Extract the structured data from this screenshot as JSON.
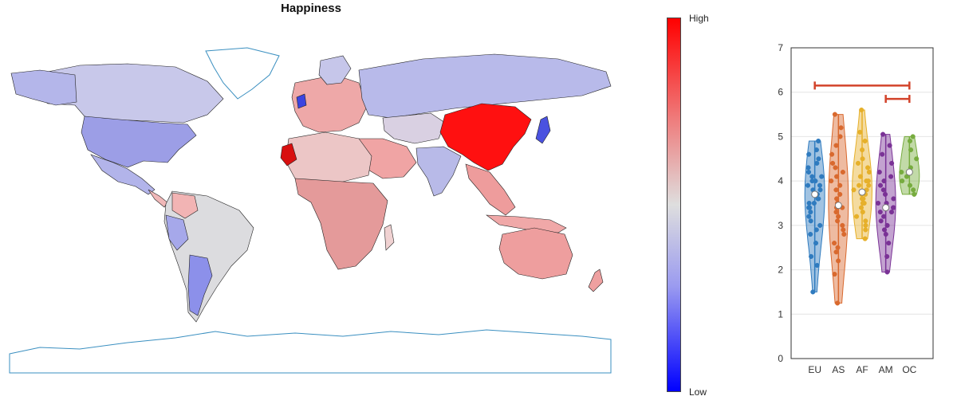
{
  "map": {
    "title": "Happiness",
    "colorbar": {
      "high_label": "High",
      "low_label": "Low",
      "colors": [
        "#0000ff",
        "#dedede",
        "#ff0000"
      ]
    },
    "highlighted_regions": [
      "China (highest)",
      "Western Sahara/Morocco (high)",
      "Japan (low)",
      "United Kingdom (low)"
    ]
  },
  "chart_data": {
    "type": "violin",
    "categories": [
      "EU",
      "AS",
      "AF",
      "AM",
      "OC"
    ],
    "ylim": [
      0,
      7
    ],
    "yticks": [
      0,
      1,
      2,
      3,
      4,
      5,
      6,
      7
    ],
    "grid": true,
    "series": [
      {
        "category": "EU",
        "color": "#2f7bbf",
        "min": 1.5,
        "max": 4.9,
        "median": 3.7,
        "points": [
          1.5,
          2.1,
          2.3,
          2.6,
          2.8,
          2.9,
          3.0,
          3.1,
          3.2,
          3.3,
          3.4,
          3.4,
          3.5,
          3.5,
          3.6,
          3.6,
          3.7,
          3.7,
          3.8,
          3.8,
          3.9,
          3.9,
          4.0,
          4.0,
          4.1,
          4.1,
          4.2,
          4.3,
          4.4,
          4.5,
          4.6,
          4.7,
          4.9
        ]
      },
      {
        "category": "AS",
        "color": "#d9692e",
        "min": 1.25,
        "max": 5.5,
        "median": 3.45,
        "points": [
          1.25,
          1.9,
          2.2,
          2.4,
          2.5,
          2.6,
          2.8,
          2.9,
          3.0,
          3.1,
          3.2,
          3.3,
          3.4,
          3.4,
          3.5,
          3.6,
          3.7,
          3.8,
          3.9,
          4.0,
          4.1,
          4.2,
          4.3,
          4.4,
          4.6,
          4.8,
          5.0,
          5.2,
          5.5
        ]
      },
      {
        "category": "AF",
        "color": "#e6b02a",
        "min": 2.7,
        "max": 5.6,
        "median": 3.75,
        "points": [
          2.7,
          2.9,
          3.0,
          3.1,
          3.2,
          3.3,
          3.4,
          3.5,
          3.5,
          3.6,
          3.6,
          3.7,
          3.7,
          3.8,
          3.8,
          3.9,
          3.9,
          4.0,
          4.0,
          4.1,
          4.2,
          4.3,
          4.4,
          4.5,
          4.7,
          4.9,
          5.1,
          5.6
        ]
      },
      {
        "category": "AM",
        "color": "#7a3296",
        "min": 1.95,
        "max": 5.05,
        "median": 3.4,
        "points": [
          1.95,
          2.3,
          2.6,
          2.8,
          2.9,
          3.0,
          3.1,
          3.2,
          3.3,
          3.3,
          3.4,
          3.4,
          3.5,
          3.5,
          3.6,
          3.7,
          3.8,
          3.9,
          4.0,
          4.1,
          4.2,
          4.4,
          4.6,
          4.8,
          5.05
        ]
      },
      {
        "category": "OC",
        "color": "#77ac3f",
        "min": 3.7,
        "max": 5.0,
        "median": 4.2,
        "points": [
          3.7,
          3.8,
          3.9,
          4.0,
          4.1,
          4.2,
          4.3,
          4.5,
          4.7,
          4.9,
          5.0
        ]
      }
    ],
    "significance_brackets": [
      {
        "from": "EU",
        "to": "OC",
        "y": 6.15
      },
      {
        "from": "AM",
        "to": "OC",
        "y": 5.85
      }
    ]
  }
}
